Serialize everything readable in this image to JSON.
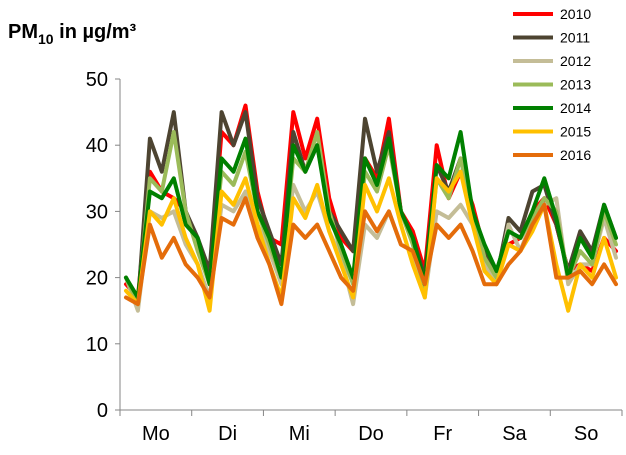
{
  "chart_data": {
    "type": "line",
    "title": [
      "PM",
      "10",
      " in µg/m³"
    ],
    "categories": [
      null,
      null,
      null,
      "Mo",
      null,
      null,
      null,
      null,
      null,
      "Di",
      null,
      null,
      null,
      null,
      null,
      "Mi",
      null,
      null,
      null,
      null,
      null,
      "Do",
      null,
      null,
      null,
      null,
      null,
      "Fr",
      null,
      null,
      null,
      null,
      null,
      "Sa",
      null,
      null,
      null,
      null,
      null,
      "So",
      null,
      null
    ],
    "ylim": [
      0,
      50
    ],
    "yticks": [
      0,
      10,
      20,
      30,
      40,
      50
    ],
    "grid": false,
    "legend": "top-right",
    "series": [
      {
        "name": "2010",
        "color": "#ff0000",
        "values": [
          19,
          17,
          36,
          33,
          32,
          30,
          25,
          20,
          42,
          40,
          46,
          33,
          26,
          25,
          45,
          38,
          44,
          32,
          26,
          24,
          38,
          35,
          44,
          30,
          27,
          21,
          40,
          32,
          36,
          31,
          24,
          21,
          25,
          26,
          30,
          32,
          28,
          21,
          22,
          21,
          26,
          24
        ]
      },
      {
        "name": "2011",
        "color": "#4d4431",
        "values": [
          20,
          16,
          41,
          36,
          45,
          30,
          26,
          21,
          45,
          40,
          45,
          32,
          27,
          22,
          42,
          36,
          40,
          30,
          27,
          24,
          44,
          36,
          42,
          30,
          26,
          20,
          37,
          33,
          38,
          30,
          24,
          20,
          29,
          27,
          33,
          34,
          28,
          21,
          27,
          24,
          31,
          26
        ]
      },
      {
        "name": "2012",
        "color": "#c4bd97",
        "values": [
          20,
          15,
          30,
          29,
          30,
          25,
          22,
          17,
          31,
          30,
          33,
          28,
          24,
          19,
          34,
          30,
          33,
          27,
          23,
          16,
          28,
          26,
          30,
          25,
          24,
          17,
          30,
          29,
          31,
          28,
          22,
          19,
          28,
          24,
          29,
          31,
          32,
          19,
          22,
          22,
          29,
          23
        ]
      },
      {
        "name": "2013",
        "color": "#9bbb59",
        "values": [
          20,
          16,
          35,
          33,
          42,
          30,
          24,
          19,
          36,
          34,
          39,
          30,
          25,
          20,
          38,
          36,
          42,
          30,
          24,
          19,
          36,
          33,
          40,
          30,
          25,
          18,
          35,
          32,
          38,
          30,
          23,
          20,
          27,
          26,
          29,
          32,
          30,
          20,
          24,
          22,
          30,
          25
        ]
      },
      {
        "name": "2014",
        "color": "#008000",
        "values": [
          20,
          17,
          33,
          32,
          35,
          28,
          26,
          19,
          38,
          36,
          41,
          30,
          26,
          20,
          40,
          36,
          40,
          29,
          25,
          20,
          38,
          34,
          41,
          30,
          26,
          19,
          37,
          35,
          42,
          30,
          25,
          21,
          27,
          26,
          30,
          35,
          29,
          20,
          26,
          23,
          31,
          26
        ]
      },
      {
        "name": "2015",
        "color": "#ffc000",
        "values": [
          18,
          16,
          30,
          28,
          32,
          26,
          22,
          15,
          33,
          31,
          35,
          28,
          22,
          17,
          32,
          29,
          34,
          27,
          22,
          17,
          34,
          30,
          35,
          28,
          22,
          17,
          35,
          33,
          36,
          28,
          21,
          19,
          25,
          24,
          27,
          31,
          22,
          15,
          22,
          20,
          26,
          20
        ]
      },
      {
        "name": "2016",
        "color": "#e46c0a",
        "values": [
          17,
          16,
          28,
          23,
          26,
          22,
          20,
          17,
          29,
          28,
          32,
          26,
          22,
          16,
          28,
          26,
          28,
          24,
          20,
          18,
          30,
          27,
          30,
          25,
          24,
          19,
          28,
          26,
          28,
          24,
          19,
          19,
          22,
          24,
          28,
          31,
          20,
          20,
          21,
          19,
          22,
          19
        ]
      }
    ]
  }
}
